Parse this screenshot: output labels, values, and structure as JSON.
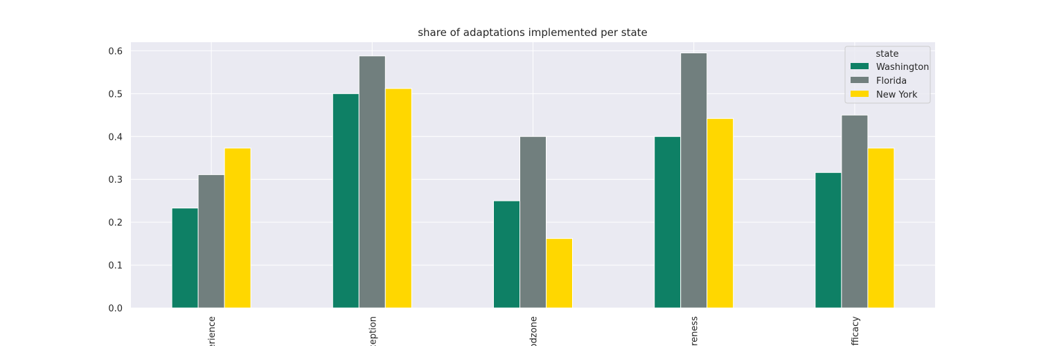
{
  "chart_data": {
    "type": "bar",
    "title": "share of adaptations implemented per state",
    "xlabel": "",
    "ylabel": "",
    "categories": [
      "erience",
      "ception",
      "odzone",
      "areness",
      "efficacy"
    ],
    "series": [
      {
        "name": "Washington",
        "values": [
          0.233,
          0.5,
          0.25,
          0.4,
          0.316
        ],
        "color": "#0e8065"
      },
      {
        "name": "Florida",
        "values": [
          0.311,
          0.588,
          0.4,
          0.595,
          0.45
        ],
        "color": "#717f7e"
      },
      {
        "name": "New York",
        "values": [
          0.373,
          0.512,
          0.162,
          0.442,
          0.373
        ],
        "color": "#ffd700"
      }
    ],
    "ylim": [
      0,
      0.62
    ],
    "yticks": [
      "0.0",
      "0.1",
      "0.2",
      "0.3",
      "0.4",
      "0.5",
      "0.6"
    ],
    "grid": true,
    "legend": {
      "title": "state",
      "placement": "top-right"
    },
    "background": "#eaeaf2"
  }
}
